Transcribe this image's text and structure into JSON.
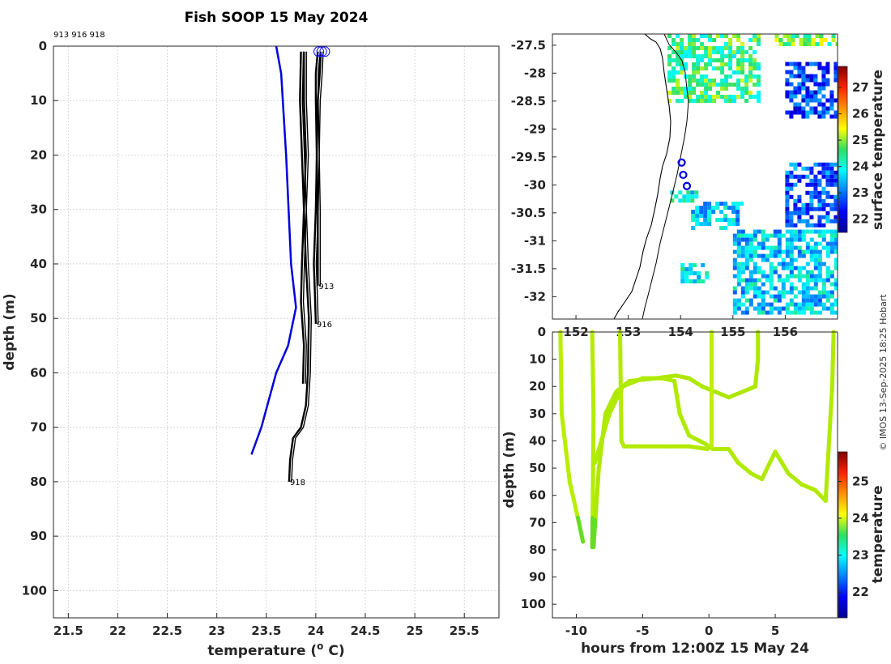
{
  "title": "Fish SOOP 15 May 2024",
  "copyright": "© IMOS 13-Sep-2025 18:25 Hobart",
  "chart_data": [
    {
      "id": "profile",
      "type": "line",
      "header_label": "913 916 918",
      "xlabel": "temperature (",
      "xlabel_sup": "o",
      "xlabel_unit": " C)",
      "ylabel": "depth (m)",
      "xlim": [
        21.35,
        25.85
      ],
      "ylim": [
        0,
        105
      ],
      "xticks": [
        "21.5",
        "22",
        "22.5",
        "23",
        "23.5",
        "24",
        "24.5",
        "25",
        "25.5"
      ],
      "yticks": [
        "0",
        "10",
        "20",
        "30",
        "40",
        "50",
        "60",
        "70",
        "80",
        "90",
        "100"
      ],
      "grid": true,
      "climatology": {
        "name": "climatology",
        "color": "#0000dd",
        "points": [
          [
            23.6,
            0
          ],
          [
            23.65,
            5
          ],
          [
            23.7,
            20
          ],
          [
            23.75,
            40
          ],
          [
            23.8,
            48
          ],
          [
            23.72,
            55
          ],
          [
            23.6,
            60
          ],
          [
            23.45,
            70
          ],
          [
            23.35,
            75
          ]
        ]
      },
      "profiles": [
        {
          "name": "913",
          "end_label": "913",
          "end": [
            24.02,
            44
          ],
          "points": [
            [
              24.02,
              1
            ],
            [
              24.0,
              5
            ],
            [
              24.0,
              10
            ],
            [
              24.01,
              20
            ],
            [
              24.02,
              30
            ],
            [
              24.02,
              40
            ],
            [
              24.02,
              44
            ]
          ]
        },
        {
          "name": "916",
          "end_label": "916",
          "end": [
            24.0,
            51
          ],
          "points": [
            [
              24.05,
              1
            ],
            [
              24.04,
              5
            ],
            [
              24.02,
              10
            ],
            [
              24.01,
              20
            ],
            [
              24.0,
              30
            ],
            [
              23.98,
              40
            ],
            [
              23.99,
              45
            ],
            [
              24.0,
              51
            ]
          ]
        },
        {
          "name": "918",
          "end_label": "918",
          "end": [
            23.73,
            80
          ],
          "points": [
            [
              23.85,
              1
            ],
            [
              23.84,
              10
            ],
            [
              23.86,
              20
            ],
            [
              23.88,
              30
            ],
            [
              23.9,
              40
            ],
            [
              23.93,
              50
            ],
            [
              23.92,
              60
            ],
            [
              23.9,
              66
            ],
            [
              23.85,
              70
            ],
            [
              23.77,
              72
            ],
            [
              23.74,
              76
            ],
            [
              23.73,
              80
            ]
          ]
        },
        {
          "name": "918b",
          "end_label": "",
          "end": [
            23.87,
            62
          ],
          "points": [
            [
              23.88,
              1
            ],
            [
              23.88,
              10
            ],
            [
              23.9,
              20
            ],
            [
              23.88,
              30
            ],
            [
              23.86,
              40
            ],
            [
              23.85,
              47
            ],
            [
              23.88,
              55
            ],
            [
              23.87,
              62
            ]
          ]
        }
      ],
      "markers": [
        [
          24.03,
          1
        ],
        [
          24.06,
          1
        ],
        [
          24.09,
          1
        ]
      ]
    },
    {
      "id": "map",
      "type": "heatmap",
      "colorbar_label": "surface temperature",
      "colorbar_ticks": [
        "22",
        "23",
        "24",
        "25",
        "26",
        "27"
      ],
      "colorbar_range": [
        21.5,
        27.8
      ],
      "xlim": [
        151.55,
        157.0
      ],
      "ylim": [
        -32.4,
        -27.3
      ],
      "xticks": [
        "152",
        "153",
        "154",
        "155",
        "156"
      ],
      "yticks": [
        "-27.5",
        "-28",
        "-28.5",
        "-29",
        "-29.5",
        "-30",
        "-30.5",
        "-31",
        "-31.5",
        "-32"
      ],
      "sst_patches": [
        {
          "lon": [
            153.75,
            155.5
          ],
          "lat": [
            -28.5,
            -27.3
          ],
          "temp": 24.5
        },
        {
          "lon": [
            155.8,
            157.0
          ],
          "lat": [
            -27.5,
            -27.3
          ],
          "temp": 24.8
        },
        {
          "lon": [
            156.0,
            157.0
          ],
          "lat": [
            -28.8,
            -27.8
          ],
          "temp": 22.6
        },
        {
          "lon": [
            156.0,
            157.0
          ],
          "lat": [
            -30.7,
            -29.6
          ],
          "temp": 22.8
        },
        {
          "lon": [
            155.0,
            157.0
          ],
          "lat": [
            -32.3,
            -30.8
          ],
          "temp": 23.6
        },
        {
          "lon": [
            154.2,
            155.2
          ],
          "lat": [
            -30.8,
            -30.3
          ],
          "temp": 23.5
        },
        {
          "lon": [
            153.8,
            154.3
          ],
          "lat": [
            -30.3,
            -30.1
          ],
          "temp": 24.0
        },
        {
          "lon": [
            154.0,
            154.5
          ],
          "lat": [
            -31.7,
            -31.4
          ],
          "temp": 24.0
        }
      ],
      "track": [
        [
          154.02,
          -29.6
        ],
        [
          154.05,
          -29.82
        ],
        [
          154.12,
          -30.02
        ]
      ]
    },
    {
      "id": "section",
      "type": "scatter",
      "xlabel": "hours from 12:00Z 15 May 24",
      "ylabel": "depth (m)",
      "colorbar_label": "temperature",
      "colorbar_ticks": [
        "22",
        "23",
        "24",
        "25"
      ],
      "colorbar_range": [
        21.3,
        25.8
      ],
      "xlim": [
        -11.8,
        9.7
      ],
      "ylim": [
        0,
        105
      ],
      "xticks": [
        "-10",
        "-5",
        "0",
        "5"
      ],
      "yticks": [
        "0",
        "10",
        "20",
        "30",
        "40",
        "50",
        "60",
        "70",
        "80",
        "90",
        "100"
      ],
      "casts": [
        {
          "color": "#b8ee00",
          "points": [
            [
              -11.2,
              0
            ],
            [
              -11.1,
              30
            ],
            [
              -10.5,
              55
            ],
            [
              -9.8,
              70
            ],
            [
              -9.5,
              77
            ]
          ]
        },
        {
          "color": "#b4ec00",
          "points": [
            [
              -8.8,
              0
            ],
            [
              -8.7,
              30
            ],
            [
              -8.75,
              60
            ],
            [
              -8.8,
              79
            ]
          ]
        },
        {
          "color": "#aee800",
          "points": [
            [
              -8.7,
              79
            ],
            [
              -8.3,
              50
            ],
            [
              -7.8,
              30
            ],
            [
              -7.0,
              22
            ],
            [
              -6,
              18
            ],
            [
              -4,
              17
            ],
            [
              -2.5,
              16
            ],
            [
              -1.5,
              17
            ],
            [
              -0.5,
              20
            ],
            [
              0.5,
              22
            ],
            [
              1.5,
              24
            ],
            [
              2.5,
              22
            ],
            [
              3.5,
              20
            ],
            [
              3.7,
              10
            ],
            [
              3.7,
              0
            ]
          ]
        },
        {
          "color": "#b2ea00",
          "points": [
            [
              -6.7,
              0
            ],
            [
              -6.6,
              40
            ],
            [
              -6.4,
              42
            ],
            [
              -5,
              42
            ],
            [
              -3,
              42
            ],
            [
              -1.5,
              42
            ],
            [
              -0.1,
              43
            ]
          ]
        },
        {
          "color": "#b0ea00",
          "points": [
            [
              -8.6,
              48
            ],
            [
              -7.5,
              30
            ],
            [
              -6.5,
              20
            ],
            [
              -5,
              17
            ],
            [
              -3.5,
              17
            ],
            [
              -2.6,
              18
            ],
            [
              -2.2,
              30
            ],
            [
              -1.5,
              38
            ],
            [
              -0.3,
              41
            ],
            [
              0.3,
              43
            ],
            [
              1.5,
              43
            ],
            [
              2.2,
              48
            ],
            [
              3.2,
              52
            ],
            [
              4.0,
              54
            ],
            [
              5,
              44
            ],
            [
              6,
              52
            ],
            [
              7,
              56
            ],
            [
              8,
              58
            ],
            [
              8.8,
              62
            ],
            [
              9.3,
              20
            ],
            [
              9.4,
              0
            ]
          ]
        },
        {
          "color": "#c0ee00",
          "points": [
            [
              0.2,
              0
            ],
            [
              0.2,
              30
            ],
            [
              0.2,
              42
            ]
          ]
        }
      ]
    }
  ]
}
